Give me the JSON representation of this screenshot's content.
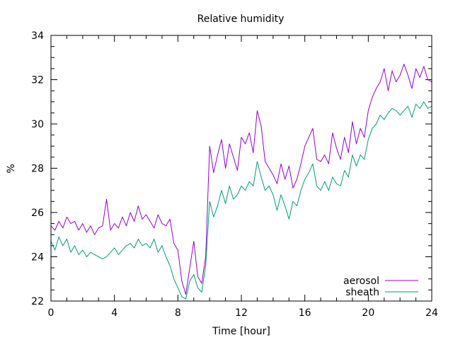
{
  "chart_data": {
    "type": "line",
    "title": "Relative humidity",
    "xlabel": "Time [hour]",
    "ylabel": "%",
    "xlim": [
      0,
      24
    ],
    "ylim": [
      22,
      34
    ],
    "xticks": [
      0,
      4,
      8,
      12,
      16,
      20,
      24
    ],
    "yticks": [
      22,
      24,
      26,
      28,
      30,
      32,
      34
    ],
    "grid": false,
    "legend_position": "bottom-right",
    "series": [
      {
        "name": "aerosol",
        "color": "#9400d3",
        "x": [
          0.0,
          0.25,
          0.5,
          0.75,
          1.0,
          1.25,
          1.5,
          1.75,
          2.0,
          2.25,
          2.5,
          2.75,
          3.0,
          3.25,
          3.5,
          3.75,
          4.0,
          4.25,
          4.5,
          4.75,
          5.0,
          5.25,
          5.5,
          5.75,
          6.0,
          6.25,
          6.5,
          6.75,
          7.0,
          7.25,
          7.5,
          7.75,
          8.0,
          8.25,
          8.5,
          8.75,
          9.0,
          9.25,
          9.5,
          9.75,
          10.0,
          10.25,
          10.5,
          10.75,
          11.0,
          11.25,
          11.5,
          11.75,
          12.0,
          12.25,
          12.5,
          12.75,
          13.0,
          13.25,
          13.5,
          13.75,
          14.0,
          14.25,
          14.5,
          14.75,
          15.0,
          15.25,
          15.5,
          15.75,
          16.0,
          16.25,
          16.5,
          16.75,
          17.0,
          17.25,
          17.5,
          17.75,
          18.0,
          18.25,
          18.5,
          18.75,
          19.0,
          19.25,
          19.5,
          19.75,
          20.0,
          20.25,
          20.5,
          20.75,
          21.0,
          21.25,
          21.5,
          21.75,
          22.0,
          22.25,
          22.5,
          22.75,
          23.0,
          23.25,
          23.5,
          23.75,
          24.0
        ],
        "values": [
          25.4,
          25.2,
          25.6,
          25.3,
          25.8,
          25.5,
          25.6,
          25.2,
          25.5,
          25.1,
          25.4,
          25.0,
          25.3,
          25.4,
          26.6,
          25.2,
          25.5,
          25.3,
          25.8,
          25.4,
          26.0,
          25.6,
          26.3,
          25.7,
          25.9,
          25.6,
          25.3,
          25.9,
          25.5,
          25.4,
          25.7,
          24.6,
          24.3,
          22.9,
          22.3,
          23.5,
          24.7,
          23.1,
          22.8,
          24.0,
          29.0,
          27.8,
          28.6,
          29.3,
          28.0,
          29.1,
          28.5,
          27.9,
          29.4,
          29.1,
          29.6,
          28.7,
          30.6,
          29.9,
          28.3,
          28.0,
          27.7,
          27.3,
          28.2,
          27.5,
          28.1,
          27.1,
          27.5,
          28.2,
          29.0,
          29.4,
          29.8,
          28.4,
          28.3,
          28.6,
          28.2,
          29.6,
          28.9,
          28.4,
          29.4,
          28.7,
          30.1,
          29.1,
          29.8,
          29.4,
          30.6,
          31.2,
          31.6,
          31.9,
          32.5,
          31.5,
          32.4,
          31.9,
          32.2,
          32.7,
          32.2,
          31.6,
          32.5,
          32.1,
          32.6,
          32.0,
          31.9
        ]
      },
      {
        "name": "sheath",
        "color": "#009e73",
        "x": [
          0.0,
          0.25,
          0.5,
          0.75,
          1.0,
          1.25,
          1.5,
          1.75,
          2.0,
          2.25,
          2.5,
          2.75,
          3.0,
          3.25,
          3.5,
          3.75,
          4.0,
          4.25,
          4.5,
          4.75,
          5.0,
          5.25,
          5.5,
          5.75,
          6.0,
          6.25,
          6.5,
          6.75,
          7.0,
          7.25,
          7.5,
          7.75,
          8.0,
          8.25,
          8.5,
          8.75,
          9.0,
          9.25,
          9.5,
          9.75,
          10.0,
          10.25,
          10.5,
          10.75,
          11.0,
          11.25,
          11.5,
          11.75,
          12.0,
          12.25,
          12.5,
          12.75,
          13.0,
          13.25,
          13.5,
          13.75,
          14.0,
          14.25,
          14.5,
          14.75,
          15.0,
          15.25,
          15.5,
          15.75,
          16.0,
          16.25,
          16.5,
          16.75,
          17.0,
          17.25,
          17.5,
          17.75,
          18.0,
          18.25,
          18.5,
          18.75,
          19.0,
          19.25,
          19.5,
          19.75,
          20.0,
          20.25,
          20.5,
          20.75,
          21.0,
          21.25,
          21.5,
          21.75,
          22.0,
          22.25,
          22.5,
          22.75,
          23.0,
          23.25,
          23.5,
          23.75,
          24.0
        ],
        "values": [
          24.7,
          24.3,
          24.9,
          24.5,
          24.8,
          24.2,
          24.5,
          24.1,
          24.3,
          24.0,
          24.2,
          24.1,
          24.0,
          23.9,
          24.0,
          24.2,
          24.4,
          24.1,
          24.3,
          24.5,
          24.6,
          24.4,
          24.8,
          24.5,
          24.6,
          24.4,
          24.8,
          24.2,
          24.5,
          24.0,
          23.6,
          23.0,
          22.6,
          22.2,
          22.1,
          22.9,
          23.2,
          22.6,
          22.4,
          23.6,
          26.5,
          25.8,
          26.3,
          27.0,
          26.4,
          27.2,
          26.6,
          26.8,
          27.2,
          27.0,
          27.4,
          27.2,
          28.3,
          27.6,
          27.0,
          27.2,
          26.8,
          26.1,
          26.8,
          26.3,
          25.7,
          26.5,
          26.3,
          27.0,
          27.5,
          27.8,
          28.2,
          27.2,
          27.0,
          27.4,
          27.0,
          27.6,
          27.3,
          27.2,
          27.9,
          27.6,
          28.6,
          28.1,
          28.6,
          28.4,
          29.3,
          29.8,
          30.0,
          30.4,
          30.2,
          30.5,
          30.7,
          30.6,
          30.4,
          30.6,
          30.8,
          30.3,
          30.9,
          30.7,
          31.0,
          30.7,
          30.8
        ]
      }
    ]
  }
}
